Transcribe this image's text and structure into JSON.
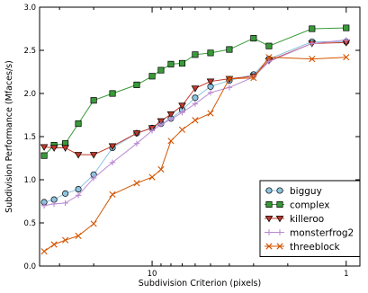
{
  "chart_data": {
    "type": "line",
    "title": "",
    "xlabel": "Subdivision Criterion (pixels)",
    "ylabel": "Subdivision Performance (Mfaces/s)",
    "x_scale": "log",
    "x_reversed": true,
    "xlim": [
      38,
      0.85
    ],
    "ylim": [
      0.0,
      3.0
    ],
    "x_ticks": [
      {
        "value": 10,
        "label": "10"
      },
      {
        "value": 1,
        "label": "1"
      }
    ],
    "y_ticks": [
      {
        "value": 0.0,
        "label": "0.0"
      },
      {
        "value": 0.5,
        "label": "0.5"
      },
      {
        "value": 1.0,
        "label": "1.0"
      },
      {
        "value": 1.5,
        "label": "1.5"
      },
      {
        "value": 2.0,
        "label": "2.0"
      },
      {
        "value": 2.5,
        "label": "2.5"
      },
      {
        "value": 3.0,
        "label": "3.0"
      }
    ],
    "grid": false,
    "legend_position": "lower-right",
    "series": [
      {
        "name": "bigguy",
        "color": "#8fc4e0",
        "marker": "circle",
        "x": [
          36,
          32,
          28,
          24,
          20,
          16,
          12,
          10,
          9,
          8,
          7,
          6,
          5,
          4,
          3,
          2.5,
          1.5,
          1
        ],
        "y": [
          0.74,
          0.77,
          0.84,
          0.89,
          1.06,
          1.37,
          1.54,
          1.6,
          1.65,
          1.71,
          1.81,
          1.95,
          2.08,
          2.15,
          2.22,
          2.4,
          2.6,
          2.6
        ]
      },
      {
        "name": "complex",
        "color": "#3a9a3a",
        "marker": "square",
        "x": [
          36,
          32,
          28,
          24,
          20,
          16,
          12,
          10,
          9,
          8,
          7,
          6,
          5,
          4,
          3,
          2.5,
          1.5,
          1
        ],
        "y": [
          1.28,
          1.4,
          1.42,
          1.65,
          1.92,
          2.0,
          2.1,
          2.2,
          2.27,
          2.34,
          2.35,
          2.45,
          2.47,
          2.51,
          2.64,
          2.55,
          2.75,
          2.76
        ]
      },
      {
        "name": "killeroo",
        "color": "#c0392b",
        "marker": "triangle-down",
        "x": [
          36,
          32,
          28,
          24,
          20,
          16,
          12,
          10,
          9,
          8,
          7,
          6,
          5,
          4,
          3,
          2.5,
          1.5,
          1
        ],
        "y": [
          1.38,
          1.37,
          1.37,
          1.29,
          1.29,
          1.39,
          1.54,
          1.6,
          1.68,
          1.76,
          1.86,
          2.06,
          2.14,
          2.17,
          2.2,
          2.38,
          2.58,
          2.59
        ]
      },
      {
        "name": "monsterfrog2",
        "color": "#b98ad1",
        "marker": "plus",
        "x": [
          36,
          32,
          28,
          24,
          20,
          16,
          12,
          10,
          9,
          8,
          7,
          6,
          5,
          4,
          3,
          2.5,
          1.5,
          1
        ],
        "y": [
          0.7,
          0.72,
          0.73,
          0.82,
          1.02,
          1.2,
          1.42,
          1.57,
          1.64,
          1.7,
          1.78,
          1.88,
          2.01,
          2.07,
          2.19,
          2.37,
          2.58,
          2.62
        ]
      },
      {
        "name": "threeblock",
        "color": "#d35400",
        "marker": "x",
        "x": [
          36,
          32,
          28,
          24,
          20,
          16,
          12,
          10,
          9,
          8,
          7,
          6,
          5,
          4,
          3,
          2.5,
          1.5,
          1
        ],
        "y": [
          0.17,
          0.25,
          0.3,
          0.35,
          0.49,
          0.83,
          0.96,
          1.03,
          1.12,
          1.45,
          1.58,
          1.69,
          1.77,
          2.17,
          2.18,
          2.42,
          2.4,
          2.42
        ]
      }
    ]
  }
}
